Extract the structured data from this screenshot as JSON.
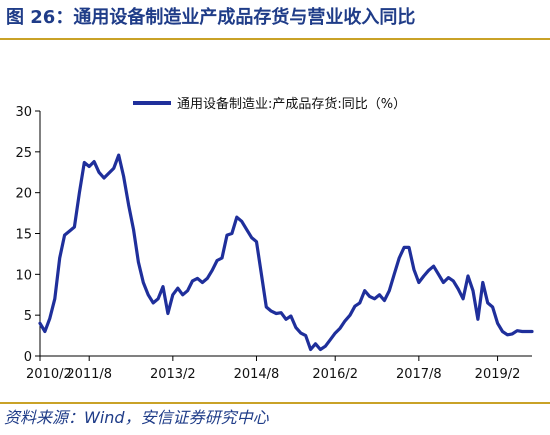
{
  "figure": {
    "title": "图 26：通用设备制造业产成品存货与营业收入同比",
    "source": "资料来源：Wind，安信证券研究中心"
  },
  "colors": {
    "series": "#1f2f9b",
    "title": "#1f3c88",
    "rule": "#c9a227",
    "axis": "#000000"
  },
  "chart_data": {
    "type": "line",
    "legend_position": "top-center",
    "grid": false,
    "ylim": [
      0,
      30
    ],
    "y_ticks": [
      0,
      5,
      10,
      15,
      20,
      25,
      30
    ],
    "y_tick_labels": [
      "0",
      "5",
      "10",
      "15",
      "20",
      "25",
      "30"
    ],
    "x_tick_labels": [
      "2010/2",
      "2011/8",
      "2013/2",
      "2014/8",
      "2016/2",
      "2017/8",
      "2019/2"
    ],
    "series": [
      {
        "name": "通用设备制造业:产成品存货:同比（%）",
        "x": [
          "2010/2",
          "2010/5",
          "2010/8",
          "2010/11",
          "2011/2",
          "2011/3",
          "2011/4",
          "2011/5",
          "2011/6",
          "2011/7",
          "2011/8",
          "2011/9",
          "2011/10",
          "2011/11",
          "2011/12",
          "2012/1",
          "2012/2",
          "2012/3",
          "2012/4",
          "2012/5",
          "2012/6",
          "2012/7",
          "2012/8",
          "2012/9",
          "2012/10",
          "2012/11",
          "2012/12",
          "2013/2",
          "2013/3",
          "2013/4",
          "2013/5",
          "2013/6",
          "2013/7",
          "2013/8",
          "2013/9",
          "2013/10",
          "2013/11",
          "2013/12",
          "2014/2",
          "2014/3",
          "2014/4",
          "2014/5",
          "2014/6",
          "2014/7",
          "2014/8",
          "2014/9",
          "2014/10",
          "2014/11",
          "2014/12",
          "2015/2",
          "2015/3",
          "2015/4",
          "2015/5",
          "2015/6",
          "2015/7",
          "2015/8",
          "2015/9",
          "2015/10",
          "2015/11",
          "2015/12",
          "2016/2",
          "2016/3",
          "2016/4",
          "2016/5",
          "2016/6",
          "2016/7",
          "2016/8",
          "2016/9",
          "2016/10",
          "2016/11",
          "2016/12",
          "2017/2",
          "2017/3",
          "2017/4",
          "2017/5",
          "2017/6",
          "2017/7",
          "2017/8",
          "2017/9",
          "2017/10",
          "2017/11",
          "2017/12",
          "2018/2",
          "2018/3",
          "2018/4",
          "2018/5",
          "2018/6",
          "2018/7",
          "2018/8",
          "2018/9",
          "2018/10",
          "2018/11",
          "2018/12",
          "2019/2",
          "2019/3",
          "2019/4",
          "2019/5",
          "2019/6",
          "2019/7",
          "2019/8",
          "2019/9"
        ],
        "values": [
          4.0,
          3.0,
          4.6,
          7.0,
          12.0,
          14.8,
          15.3,
          15.8,
          20.0,
          23.7,
          23.2,
          23.8,
          22.5,
          21.8,
          22.4,
          23.0,
          24.6,
          22.0,
          18.5,
          15.5,
          11.5,
          9.0,
          7.5,
          6.5,
          7.0,
          8.5,
          5.2,
          7.5,
          8.3,
          7.5,
          8.0,
          9.2,
          9.5,
          9.0,
          9.5,
          10.5,
          11.7,
          12.0,
          14.8,
          15.0,
          17.0,
          16.5,
          15.5,
          14.5,
          14.0,
          10.0,
          6.0,
          5.5,
          5.2,
          5.3,
          4.5,
          4.9,
          3.5,
          2.8,
          2.5,
          0.8,
          1.5,
          0.8,
          1.2,
          2.0,
          2.8,
          3.4,
          4.3,
          5.0,
          6.1,
          6.5,
          8.0,
          7.3,
          7.0,
          7.5,
          6.8,
          8.0,
          10.0,
          12.0,
          13.3,
          13.3,
          10.6,
          9.0,
          9.8,
          10.5,
          11.0,
          10.0,
          9.0,
          9.6,
          9.2,
          8.2,
          7.0,
          9.8,
          8.0,
          4.5,
          9.0,
          6.5,
          6.0,
          4.0,
          3.0,
          2.6,
          2.7,
          3.1,
          3.0,
          3.0,
          3.0
        ]
      }
    ]
  }
}
